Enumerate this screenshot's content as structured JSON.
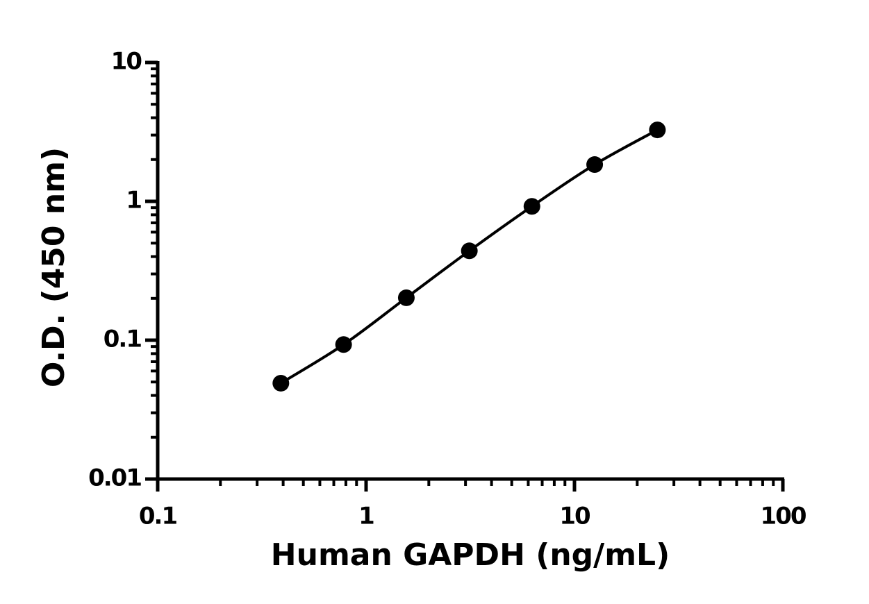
{
  "chart_data": {
    "type": "scatter",
    "x_label": "Human GAPDH (ng/mL)",
    "y_label": "O.D. (450 nm)",
    "series": [
      {
        "color": "#000000",
        "x": [
          0.39,
          0.78,
          1.56,
          3.13,
          6.25,
          12.5,
          25
        ],
        "values": [
          0.049,
          0.093,
          0.202,
          0.44,
          0.92,
          1.84,
          3.27
        ]
      }
    ],
    "xscale": "log",
    "yscale": "log",
    "xlim": [
      0.1,
      100
    ],
    "xticks": [
      0.1,
      1,
      10,
      100
    ],
    "ylim": [
      0.01,
      10
    ],
    "yticks": [
      0.01,
      0.1,
      1,
      10
    ],
    "minor_ticks": true,
    "fit_line": true,
    "grid": false
  }
}
